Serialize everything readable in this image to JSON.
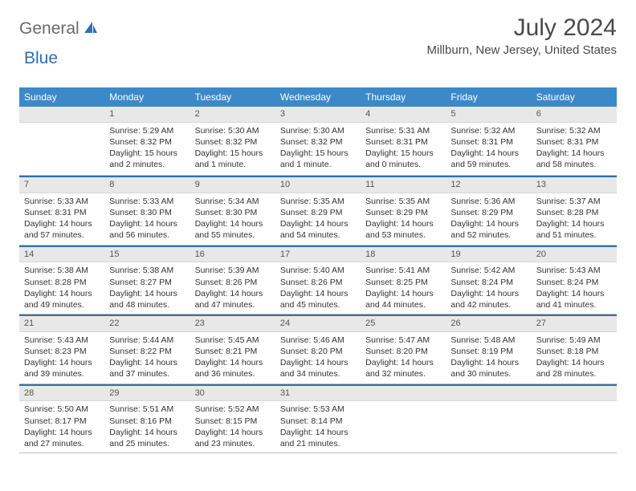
{
  "logo": {
    "part1": "General",
    "part2": "Blue"
  },
  "title": "July 2024",
  "location": "Millburn, New Jersey, United States",
  "colors": {
    "header_bg": "#3b89c9",
    "header_text": "#ffffff",
    "accent": "#2f6fb4",
    "daybar_bg": "#e8e8e8",
    "text": "#333333",
    "border": "#bfbfbf"
  },
  "day_headers": [
    "Sunday",
    "Monday",
    "Tuesday",
    "Wednesday",
    "Thursday",
    "Friday",
    "Saturday"
  ],
  "start_offset": 1,
  "days": [
    {
      "n": 1,
      "sr": "5:29 AM",
      "ss": "8:32 PM",
      "dl": "15 hours and 2 minutes."
    },
    {
      "n": 2,
      "sr": "5:30 AM",
      "ss": "8:32 PM",
      "dl": "15 hours and 1 minute."
    },
    {
      "n": 3,
      "sr": "5:30 AM",
      "ss": "8:32 PM",
      "dl": "15 hours and 1 minute."
    },
    {
      "n": 4,
      "sr": "5:31 AM",
      "ss": "8:31 PM",
      "dl": "15 hours and 0 minutes."
    },
    {
      "n": 5,
      "sr": "5:32 AM",
      "ss": "8:31 PM",
      "dl": "14 hours and 59 minutes."
    },
    {
      "n": 6,
      "sr": "5:32 AM",
      "ss": "8:31 PM",
      "dl": "14 hours and 58 minutes."
    },
    {
      "n": 7,
      "sr": "5:33 AM",
      "ss": "8:31 PM",
      "dl": "14 hours and 57 minutes."
    },
    {
      "n": 8,
      "sr": "5:33 AM",
      "ss": "8:30 PM",
      "dl": "14 hours and 56 minutes."
    },
    {
      "n": 9,
      "sr": "5:34 AM",
      "ss": "8:30 PM",
      "dl": "14 hours and 55 minutes."
    },
    {
      "n": 10,
      "sr": "5:35 AM",
      "ss": "8:29 PM",
      "dl": "14 hours and 54 minutes."
    },
    {
      "n": 11,
      "sr": "5:35 AM",
      "ss": "8:29 PM",
      "dl": "14 hours and 53 minutes."
    },
    {
      "n": 12,
      "sr": "5:36 AM",
      "ss": "8:29 PM",
      "dl": "14 hours and 52 minutes."
    },
    {
      "n": 13,
      "sr": "5:37 AM",
      "ss": "8:28 PM",
      "dl": "14 hours and 51 minutes."
    },
    {
      "n": 14,
      "sr": "5:38 AM",
      "ss": "8:28 PM",
      "dl": "14 hours and 49 minutes."
    },
    {
      "n": 15,
      "sr": "5:38 AM",
      "ss": "8:27 PM",
      "dl": "14 hours and 48 minutes."
    },
    {
      "n": 16,
      "sr": "5:39 AM",
      "ss": "8:26 PM",
      "dl": "14 hours and 47 minutes."
    },
    {
      "n": 17,
      "sr": "5:40 AM",
      "ss": "8:26 PM",
      "dl": "14 hours and 45 minutes."
    },
    {
      "n": 18,
      "sr": "5:41 AM",
      "ss": "8:25 PM",
      "dl": "14 hours and 44 minutes."
    },
    {
      "n": 19,
      "sr": "5:42 AM",
      "ss": "8:24 PM",
      "dl": "14 hours and 42 minutes."
    },
    {
      "n": 20,
      "sr": "5:43 AM",
      "ss": "8:24 PM",
      "dl": "14 hours and 41 minutes."
    },
    {
      "n": 21,
      "sr": "5:43 AM",
      "ss": "8:23 PM",
      "dl": "14 hours and 39 minutes."
    },
    {
      "n": 22,
      "sr": "5:44 AM",
      "ss": "8:22 PM",
      "dl": "14 hours and 37 minutes."
    },
    {
      "n": 23,
      "sr": "5:45 AM",
      "ss": "8:21 PM",
      "dl": "14 hours and 36 minutes."
    },
    {
      "n": 24,
      "sr": "5:46 AM",
      "ss": "8:20 PM",
      "dl": "14 hours and 34 minutes."
    },
    {
      "n": 25,
      "sr": "5:47 AM",
      "ss": "8:20 PM",
      "dl": "14 hours and 32 minutes."
    },
    {
      "n": 26,
      "sr": "5:48 AM",
      "ss": "8:19 PM",
      "dl": "14 hours and 30 minutes."
    },
    {
      "n": 27,
      "sr": "5:49 AM",
      "ss": "8:18 PM",
      "dl": "14 hours and 28 minutes."
    },
    {
      "n": 28,
      "sr": "5:50 AM",
      "ss": "8:17 PM",
      "dl": "14 hours and 27 minutes."
    },
    {
      "n": 29,
      "sr": "5:51 AM",
      "ss": "8:16 PM",
      "dl": "14 hours and 25 minutes."
    },
    {
      "n": 30,
      "sr": "5:52 AM",
      "ss": "8:15 PM",
      "dl": "14 hours and 23 minutes."
    },
    {
      "n": 31,
      "sr": "5:53 AM",
      "ss": "8:14 PM",
      "dl": "14 hours and 21 minutes."
    }
  ],
  "labels": {
    "sunrise": "Sunrise:",
    "sunset": "Sunset:",
    "daylight": "Daylight:"
  }
}
